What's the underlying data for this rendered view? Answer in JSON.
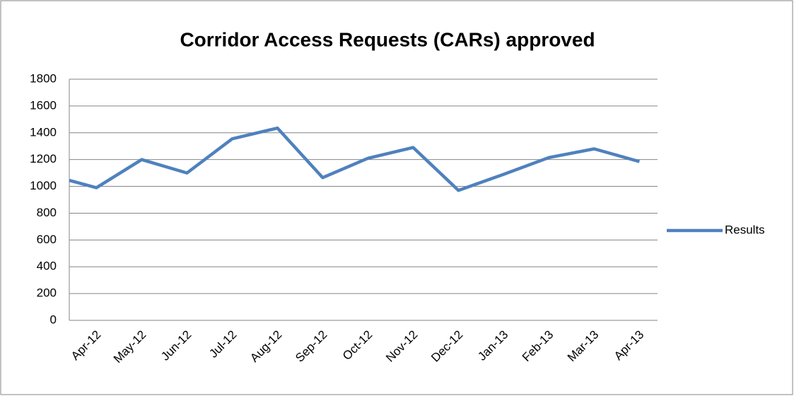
{
  "chart_data": {
    "type": "line",
    "title": "Corridor Access Requests (CARs) approved",
    "categories": [
      null,
      "Apr-12",
      "May-12",
      "Jun-12",
      "Jul-12",
      "Aug-12",
      "Sep-12",
      "Oct-12",
      "Nov-12",
      "Dec-12",
      "Jan-13",
      "Feb-13",
      "Mar-13",
      "Apr-13"
    ],
    "series": [
      {
        "name": "Results",
        "color": "#4f81bd",
        "values": [
          1045,
          990,
          1200,
          1100,
          1355,
          1435,
          1065,
          1210,
          1290,
          970,
          1090,
          1215,
          1280,
          1185
        ]
      }
    ],
    "ylim": [
      0,
      1800
    ],
    "yticks": [
      0,
      200,
      400,
      600,
      800,
      1000,
      1200,
      1400,
      1600,
      1800
    ],
    "grid": true,
    "legend": "right"
  }
}
